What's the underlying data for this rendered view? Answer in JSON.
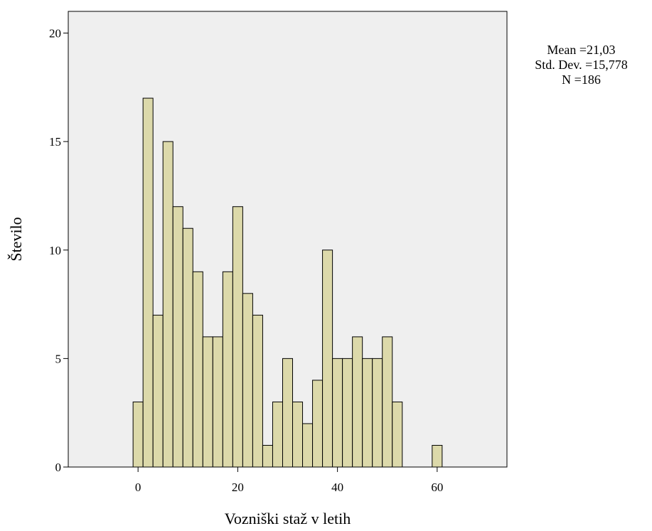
{
  "chart_data": {
    "type": "bar",
    "subtype": "histogram",
    "xlabel": "Vozniški staž v letih",
    "ylabel": "Število",
    "xlim": [
      -14,
      74
    ],
    "ylim": [
      0,
      21
    ],
    "xticks": [
      0,
      20,
      40,
      60
    ],
    "yticks": [
      0,
      5,
      10,
      15,
      20
    ],
    "bin_width": 2,
    "bins": [
      {
        "x": 0,
        "count": 3
      },
      {
        "x": 2,
        "count": 17
      },
      {
        "x": 4,
        "count": 7
      },
      {
        "x": 6,
        "count": 15
      },
      {
        "x": 8,
        "count": 12
      },
      {
        "x": 10,
        "count": 11
      },
      {
        "x": 12,
        "count": 9
      },
      {
        "x": 14,
        "count": 6
      },
      {
        "x": 16,
        "count": 6
      },
      {
        "x": 18,
        "count": 9
      },
      {
        "x": 20,
        "count": 12
      },
      {
        "x": 22,
        "count": 8
      },
      {
        "x": 24,
        "count": 7
      },
      {
        "x": 26,
        "count": 1
      },
      {
        "x": 28,
        "count": 3
      },
      {
        "x": 30,
        "count": 5
      },
      {
        "x": 32,
        "count": 3
      },
      {
        "x": 34,
        "count": 2
      },
      {
        "x": 36,
        "count": 4
      },
      {
        "x": 38,
        "count": 10
      },
      {
        "x": 40,
        "count": 5
      },
      {
        "x": 42,
        "count": 5
      },
      {
        "x": 44,
        "count": 6
      },
      {
        "x": 46,
        "count": 5
      },
      {
        "x": 48,
        "count": 5
      },
      {
        "x": 50,
        "count": 6
      },
      {
        "x": 52,
        "count": 3
      },
      {
        "x": 60,
        "count": 1
      }
    ],
    "stats": {
      "mean": "Mean =21,03",
      "std": "Std. Dev. =15,778",
      "n": "N =186"
    },
    "grid": false,
    "colors": {
      "bar_fill": "#DCD9AA",
      "bar_stroke": "#000000",
      "plot_background": "#EFEFEF",
      "page_background": "#FFFFFF"
    }
  }
}
